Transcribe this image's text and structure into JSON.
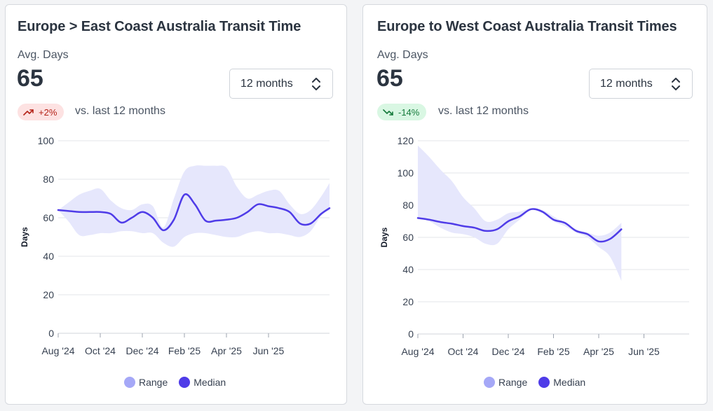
{
  "colors": {
    "range": "#a5a8f7",
    "range_fill": "#e6e7fc",
    "median": "#4f3ce8",
    "grid": "#e3e5e8",
    "up_badge": "#fde2e2",
    "down_badge": "#d9f7e3"
  },
  "cards": [
    {
      "title": "Europe > East Coast Australia Transit Time",
      "metric_label": "Avg. Days",
      "metric_value": "65",
      "period": "12 months",
      "change": "+2%",
      "change_direction": "up",
      "compare_text": "vs. last 12 months",
      "legend": {
        "range": "Range",
        "median": "Median"
      }
    },
    {
      "title": "Europe to West Coast Australia Transit Times",
      "metric_label": "Avg. Days",
      "metric_value": "65",
      "period": "12 months",
      "change": "-14%",
      "change_direction": "down",
      "compare_text": "vs. last 12 months",
      "legend": {
        "range": "Range",
        "median": "Median"
      }
    }
  ],
  "chart_data": [
    {
      "type": "area",
      "ylabel": "Days",
      "ylim": [
        0,
        100
      ],
      "yticks": [
        0,
        20,
        40,
        60,
        80,
        100
      ],
      "xlim": [
        0,
        12.9
      ],
      "xticks": [
        {
          "x": 0,
          "label": "Aug '24"
        },
        {
          "x": 2,
          "label": "Oct '24"
        },
        {
          "x": 4,
          "label": "Dec '24"
        },
        {
          "x": 6,
          "label": "Feb '25"
        },
        {
          "x": 8,
          "label": "Apr '25"
        },
        {
          "x": 10,
          "label": "Jun '25"
        }
      ],
      "grid": true,
      "legend_position": "bottom",
      "series": [
        {
          "name": "Median",
          "x": [
            0,
            0.5,
            1,
            1.5,
            2,
            2.5,
            3,
            3.5,
            4,
            4.5,
            5,
            5.5,
            6,
            6.5,
            7,
            7.5,
            8,
            8.5,
            9,
            9.5,
            10,
            10.5,
            11,
            11.5,
            12,
            12.5,
            12.9
          ],
          "values": [
            64,
            63.5,
            63,
            63,
            63,
            62,
            57.5,
            60,
            63,
            60,
            53.5,
            59,
            72,
            67,
            58.5,
            58.5,
            59,
            60,
            63,
            67,
            66,
            65,
            63,
            57,
            57,
            62,
            65
          ]
        },
        {
          "name": "Range",
          "x": [
            0,
            0.5,
            1,
            1.5,
            2,
            2.5,
            3,
            3.5,
            4,
            4.5,
            5,
            5.5,
            6,
            6.5,
            7,
            7.5,
            8,
            8.5,
            9,
            9.5,
            10,
            10.5,
            11,
            11.5,
            12,
            12.5,
            12.9
          ],
          "low": [
            64,
            58,
            51,
            51,
            52,
            52,
            53,
            53,
            52,
            52,
            47,
            45,
            50,
            52,
            52,
            51,
            50,
            50,
            52,
            53,
            52,
            52,
            51,
            50,
            53,
            61,
            64
          ],
          "high": [
            64,
            68,
            72,
            74,
            75,
            69,
            65,
            64,
            67,
            66,
            55,
            70,
            84,
            87,
            87,
            87,
            86,
            76,
            70,
            72,
            74,
            74,
            67,
            62,
            64,
            71,
            78
          ]
        }
      ]
    },
    {
      "type": "area",
      "ylabel": "Days",
      "ylim": [
        0,
        120
      ],
      "yticks": [
        0,
        20,
        40,
        60,
        80,
        100,
        120
      ],
      "xlim": [
        0,
        12
      ],
      "xticks": [
        {
          "x": 0,
          "label": "Aug '24"
        },
        {
          "x": 2,
          "label": "Oct '24"
        },
        {
          "x": 4,
          "label": "Dec '24"
        },
        {
          "x": 6,
          "label": "Feb '25"
        },
        {
          "x": 8,
          "label": "Apr '25"
        },
        {
          "x": 10,
          "label": "Jun '25"
        }
      ],
      "grid": true,
      "legend_position": "bottom",
      "series": [
        {
          "name": "Median",
          "x": [
            0,
            0.5,
            1,
            1.5,
            2,
            2.5,
            3,
            3.5,
            4,
            4.5,
            5,
            5.5,
            6,
            6.5,
            7,
            7.5,
            8,
            8.5,
            9
          ],
          "values": [
            72,
            71,
            69.5,
            68.5,
            67,
            66,
            64,
            65,
            70,
            73,
            77.5,
            76,
            71,
            69,
            64,
            62,
            57.5,
            59,
            65
          ]
        },
        {
          "name": "Range",
          "x": [
            0,
            0.5,
            1,
            1.5,
            2,
            2.5,
            3,
            3.5,
            4,
            4.5,
            5,
            5.5,
            6,
            6.5,
            7,
            7.5,
            8,
            8.5,
            9
          ],
          "low": [
            72,
            70,
            66,
            63,
            62,
            60,
            56,
            56,
            65,
            71,
            77,
            75,
            70,
            67,
            63,
            60,
            54,
            48,
            33
          ],
          "high": [
            117,
            110,
            102,
            95,
            85,
            78,
            70,
            71,
            75,
            76,
            78,
            77,
            73,
            69,
            65,
            63,
            61,
            63,
            69
          ]
        }
      ]
    }
  ]
}
